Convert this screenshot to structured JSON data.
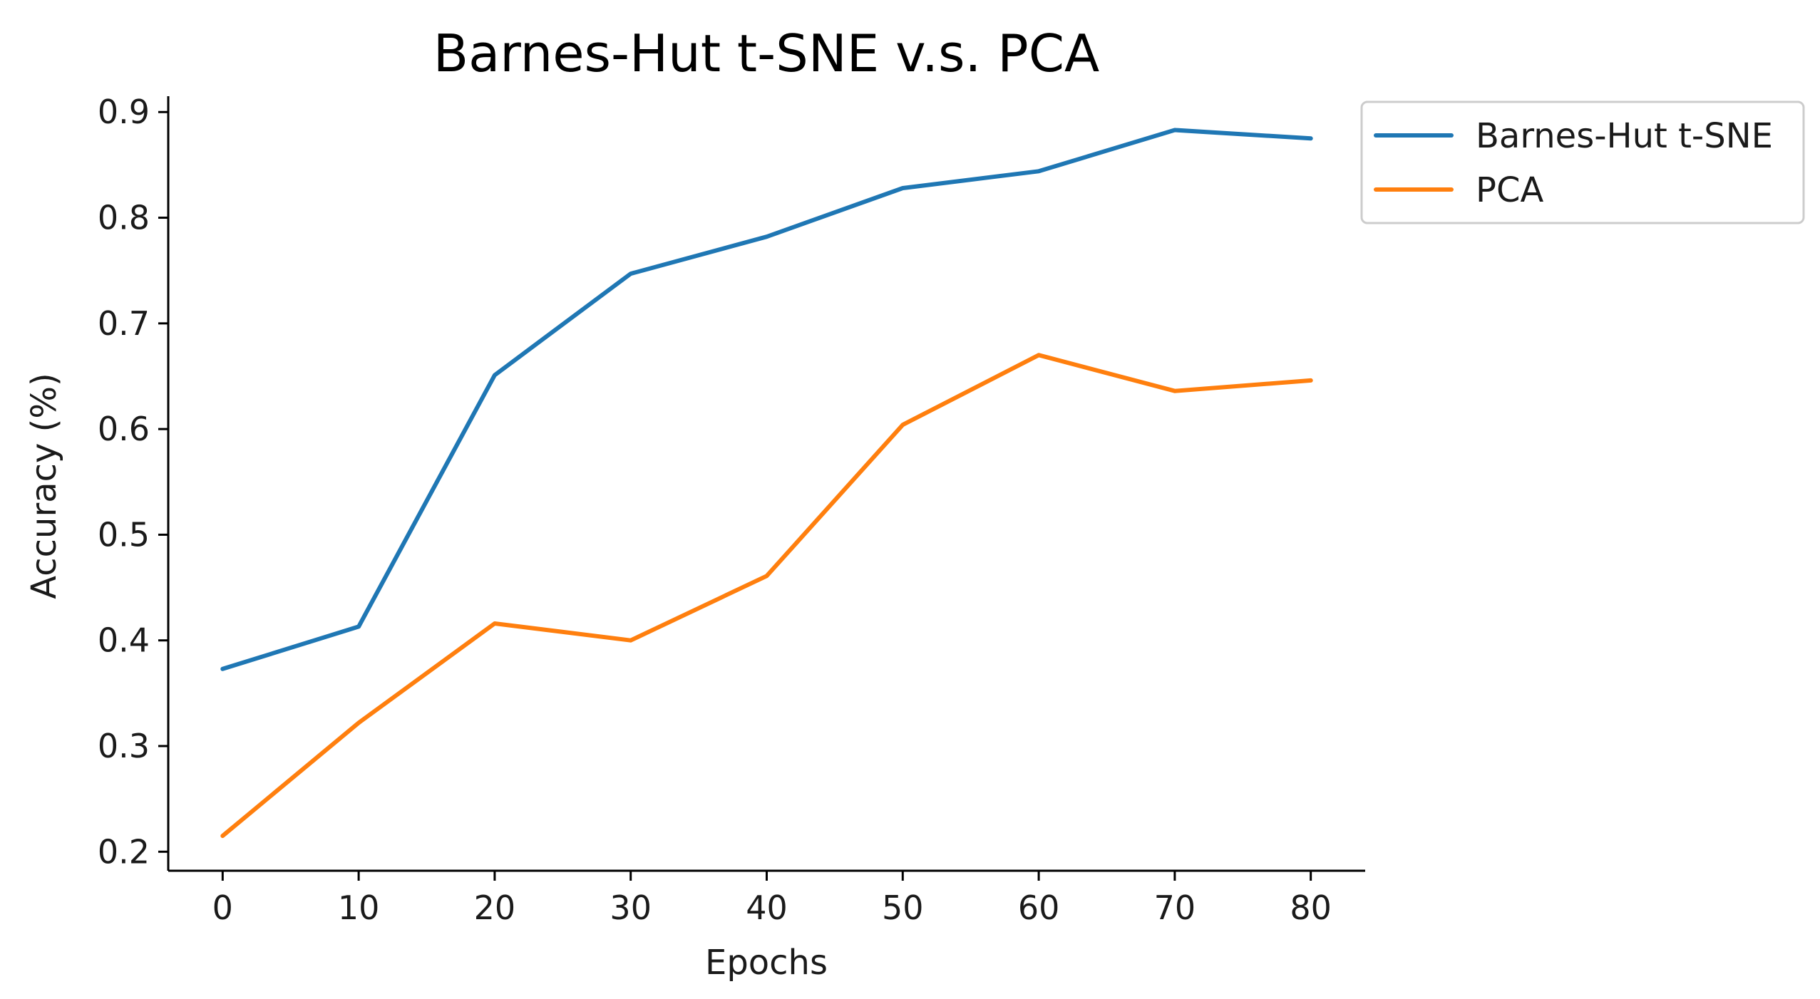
{
  "chart_data": {
    "type": "line",
    "title": "Barnes-Hut t-SNE v.s. PCA",
    "xlabel": "Epochs",
    "ylabel": "Accuracy (%)",
    "x": [
      0,
      10,
      20,
      30,
      40,
      50,
      60,
      70,
      80
    ],
    "xticks": [
      "0",
      "10",
      "20",
      "30",
      "40",
      "50",
      "60",
      "70",
      "80"
    ],
    "yticks": [
      "0.2",
      "0.3",
      "0.4",
      "0.5",
      "0.6",
      "0.7",
      "0.8",
      "0.9"
    ],
    "xlim": [
      -4,
      84
    ],
    "ylim": [
      0.182,
      0.915
    ],
    "grid": false,
    "legend_position": "outside-top-right",
    "series": [
      {
        "name": "Barnes-Hut t-SNE",
        "color": "#1f77b4",
        "values": [
          0.373,
          0.413,
          0.651,
          0.747,
          0.782,
          0.828,
          0.844,
          0.883,
          0.875
        ]
      },
      {
        "name": "PCA",
        "color": "#ff7f0e",
        "values": [
          0.215,
          0.322,
          0.416,
          0.4,
          0.461,
          0.604,
          0.67,
          0.636,
          0.646
        ]
      }
    ]
  }
}
